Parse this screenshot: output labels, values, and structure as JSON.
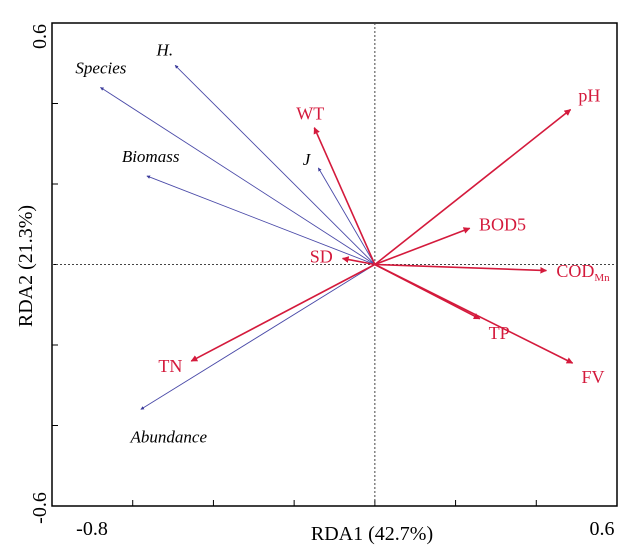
{
  "chart_data": {
    "type": "scatter",
    "xlabel": "RDA1 (42.7%)",
    "ylabel": "RDA2 (21.3%)",
    "xlim": [
      -0.8,
      0.6
    ],
    "ylim": [
      -0.6,
      0.6
    ],
    "x_tick_labels": [
      "-0.8",
      "0.6"
    ],
    "y_tick_labels": [
      "-0.6",
      "0.6"
    ],
    "grid": false,
    "reference_lines": {
      "x": 0,
      "y": 0
    },
    "colors": {
      "response": "#4a4aa8",
      "environment": "#d41a3c",
      "frame": "#000000"
    },
    "response_vectors": [
      {
        "label": "H.",
        "x": -0.495,
        "y": 0.495
      },
      {
        "label": "Species",
        "x": -0.68,
        "y": 0.44
      },
      {
        "label": "Biomass",
        "x": -0.565,
        "y": 0.22
      },
      {
        "label": "J",
        "x": -0.14,
        "y": 0.24
      },
      {
        "label": "Abundance",
        "x": -0.58,
        "y": -0.36
      }
    ],
    "environment_vectors": [
      {
        "label": "pH",
        "x": 0.485,
        "y": 0.385,
        "sub": ""
      },
      {
        "label": "WT",
        "x": -0.15,
        "y": 0.34,
        "sub": ""
      },
      {
        "label": "BOD5",
        "x": 0.235,
        "y": 0.09,
        "sub": ""
      },
      {
        "label": "SD",
        "x": -0.08,
        "y": 0.015,
        "sub": ""
      },
      {
        "label": "COD",
        "x": 0.425,
        "y": -0.015,
        "sub": "Mn"
      },
      {
        "label": "TP",
        "x": 0.26,
        "y": -0.135,
        "sub": ""
      },
      {
        "label": "TN",
        "x": -0.455,
        "y": -0.24,
        "sub": ""
      },
      {
        "label": "FV",
        "x": 0.49,
        "y": -0.245,
        "sub": ""
      }
    ]
  }
}
